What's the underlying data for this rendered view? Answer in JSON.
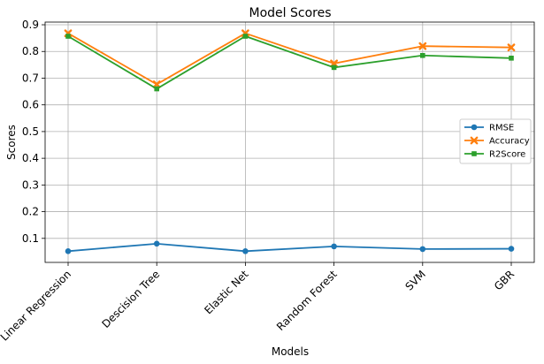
{
  "chart_data": {
    "type": "line",
    "title": "Model Scores",
    "xlabel": "Models",
    "ylabel": "Scores",
    "categories": [
      "Linear Regression",
      "Descision Tree",
      "Elastic Net",
      "Random Forest",
      "SVM",
      "GBR"
    ],
    "ylim": [
      0.01,
      0.91
    ],
    "yticks": [
      0.1,
      0.2,
      0.3,
      0.4,
      0.5,
      0.6,
      0.7,
      0.8,
      0.9
    ],
    "ytick_labels": [
      "0.1",
      "0.2",
      "0.3",
      "0.4",
      "0.5",
      "0.6",
      "0.7",
      "0.8",
      "0.9"
    ],
    "grid": true,
    "legend_position": "center-right",
    "series": [
      {
        "name": "RMSE",
        "color": "#1f77b4",
        "marker": "circle",
        "values": [
          0.052,
          0.08,
          0.052,
          0.07,
          0.06,
          0.061
        ]
      },
      {
        "name": "Accuracy",
        "color": "#ff7f0e",
        "marker": "x",
        "values": [
          0.868,
          0.677,
          0.868,
          0.755,
          0.82,
          0.815
        ]
      },
      {
        "name": "R2Score",
        "color": "#2ca02c",
        "marker": "square",
        "values": [
          0.857,
          0.66,
          0.857,
          0.74,
          0.785,
          0.775
        ]
      }
    ]
  }
}
